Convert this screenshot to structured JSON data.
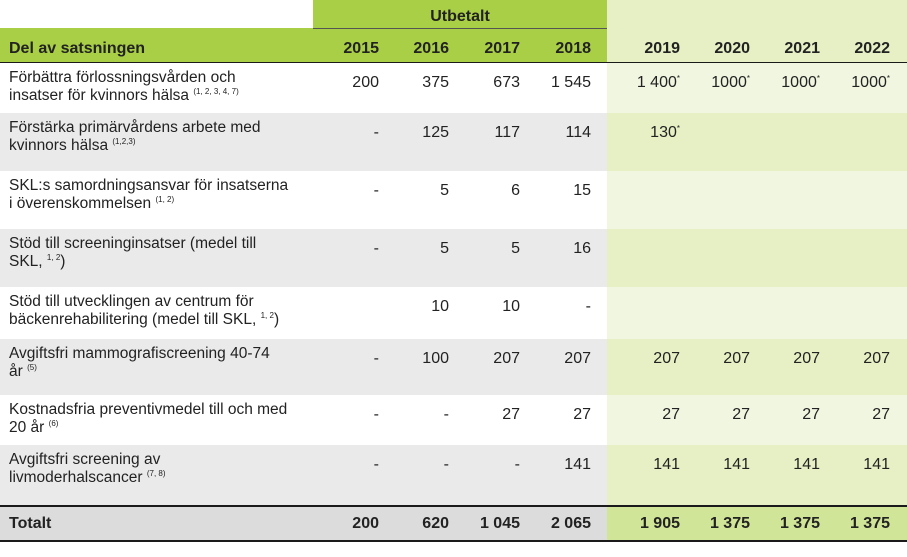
{
  "table": {
    "group_header": "Utbetalt",
    "header_label": "Del av satsningen",
    "years": [
      "2015",
      "2016",
      "2017",
      "2018",
      "2019",
      "2020",
      "2021",
      "2022"
    ],
    "rows": [
      {
        "line1": "Förbättra förlossningsvården och",
        "line2": "insatser för kvinnors hälsa",
        "ref": "(1, 2, 3, 4, 7)",
        "values": [
          "200",
          "375",
          "673",
          "1 545",
          "1 400",
          "1000",
          "1000",
          "1000"
        ],
        "marks": [
          "",
          "",
          "",
          "",
          "*",
          "*",
          "*",
          "*"
        ]
      },
      {
        "line1": "Förstärka primärvårdens arbete med",
        "line2": "kvinnors hälsa",
        "ref": "(1,2,3)",
        "values": [
          "-",
          "125",
          "117",
          "114",
          "130",
          "",
          "",
          ""
        ],
        "marks": [
          "",
          "",
          "",
          "",
          "*",
          "",
          "",
          ""
        ]
      },
      {
        "line1": "SKL:s samordningsansvar för insatserna",
        "line2": "i överenskommelsen",
        "ref": "(1, 2)",
        "values": [
          "-",
          "5",
          "6",
          "15",
          "",
          "",
          "",
          ""
        ],
        "marks": [
          "",
          "",
          "",
          "",
          "",
          "",
          "",
          ""
        ]
      },
      {
        "line1": "Stöd till screeninginsatser (medel till",
        "line2": "SKL,",
        "ref": "1, 2",
        "line2_after": ")",
        "values": [
          "-",
          "5",
          "5",
          "16",
          "",
          "",
          "",
          ""
        ],
        "marks": [
          "",
          "",
          "",
          "",
          "",
          "",
          "",
          ""
        ]
      },
      {
        "line1": "Stöd till utvecklingen av centrum för",
        "line2": "bäckenrehabilitering (medel till SKL,",
        "ref": "1, 2",
        "line2_after": ")",
        "values": [
          "",
          "10",
          "10",
          "-",
          "",
          "",
          "",
          ""
        ],
        "marks": [
          "",
          "",
          "",
          "",
          "",
          "",
          "",
          ""
        ]
      },
      {
        "line1": "Avgiftsfri mammografiscreening  40-74",
        "line2": "år",
        "ref": "(5)",
        "values": [
          "-",
          "100",
          "207",
          "207",
          "207",
          "207",
          "207",
          "207"
        ],
        "marks": [
          "",
          "",
          "",
          "",
          "",
          "",
          "",
          ""
        ]
      },
      {
        "line1": "Kostnadsfria preventivmedel till och med",
        "line2": "20 år",
        "ref": "(6)",
        "values": [
          "-",
          "-",
          "27",
          "27",
          "27",
          "27",
          "27",
          "27"
        ],
        "marks": [
          "",
          "",
          "",
          "",
          "",
          "",
          "",
          ""
        ]
      },
      {
        "line1": "Avgiftsfri screening av",
        "line2": "livmoderhalscancer",
        "ref": "(7, 8)",
        "values": [
          "-",
          "-",
          "-",
          "141",
          "141",
          "141",
          "141",
          "141"
        ],
        "marks": [
          "",
          "",
          "",
          "",
          "",
          "",
          "",
          ""
        ]
      }
    ],
    "total_label": "Totalt",
    "totals": [
      "200",
      "620",
      "1 045",
      "2 065",
      "1 905",
      "1 375",
      "1 375",
      "1 375"
    ]
  },
  "colors": {
    "header_green": "#a8cf45",
    "light_green": "#e6f0c4",
    "pale_green": "#f1f6e0",
    "grey_band": "#eaeaea",
    "total_green": "#d0e597",
    "total_grey": "#dcdcdc"
  }
}
